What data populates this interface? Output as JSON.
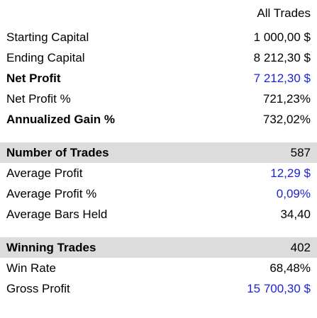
{
  "header": {
    "column_title": "All Trades"
  },
  "colors": {
    "link_value": "#1d24d6",
    "section_background": "#dcdcdc"
  },
  "general": {
    "starting_capital": {
      "label": "Starting Capital",
      "value": "1 000,00 $"
    },
    "ending_capital": {
      "label": "Ending Capital",
      "value": "8 212,30 $"
    },
    "net_profit": {
      "label": "Net Profit",
      "value": "7 212,30 $"
    },
    "net_profit_pct": {
      "label": "Net Profit %",
      "value": "721,23%"
    },
    "annualized_gain_pct": {
      "label": "Annualized Gain %",
      "value": "732,02%"
    }
  },
  "trades": {
    "number_of_trades": {
      "label": "Number of Trades",
      "value": "587"
    },
    "average_profit": {
      "label": "Average Profit",
      "value": "12,29 $"
    },
    "average_profit_pct": {
      "label": "Average Profit %",
      "value": "0,09%"
    },
    "average_bars_held": {
      "label": "Average Bars Held",
      "value": "34,40"
    }
  },
  "winners": {
    "winning_trades": {
      "label": "Winning Trades",
      "value": "402"
    },
    "win_rate": {
      "label": "Win Rate",
      "value": "68,48%"
    },
    "gross_profit": {
      "label": "Gross Profit",
      "value": "15 700,30 $"
    }
  }
}
